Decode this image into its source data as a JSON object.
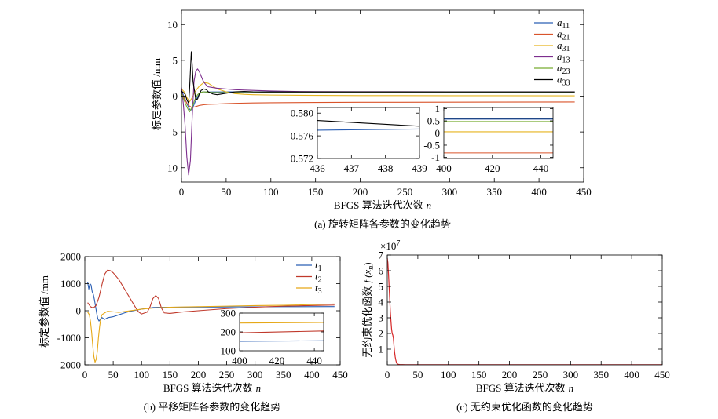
{
  "chart_data": [
    {
      "id": "a",
      "type": "line",
      "caption": "(a) 旋转矩阵各参数的变化趋势",
      "xlabel": "BFGS 算法迭代次数",
      "xlabel_var": "n",
      "ylabel": "标定参数值 /mm",
      "xlim": [
        0,
        450
      ],
      "ylim": [
        -12,
        12
      ],
      "xticks": [
        "0",
        "50",
        "100",
        "150",
        "200",
        "250",
        "300",
        "350",
        "400",
        "450"
      ],
      "yticks": [
        "10",
        "5",
        "0",
        "-5",
        "-10"
      ],
      "legend_position": "top-right",
      "series": [
        {
          "name": "a",
          "sub": "11",
          "color": "#2b5fb4",
          "x": [
            0,
            2,
            4,
            6,
            8,
            10,
            12,
            14,
            16,
            18,
            20,
            22,
            24,
            26,
            28,
            30,
            35,
            40,
            45,
            50,
            60,
            70,
            80,
            90,
            100,
            110,
            120,
            130,
            150,
            200,
            300,
            440
          ],
          "y": [
            0.8,
            0.2,
            -0.4,
            -1.0,
            -1.6,
            -2.0,
            -1.8,
            -1.2,
            -0.6,
            -0.1,
            0.3,
            0.5,
            0.6,
            0.58,
            0.55,
            0.57,
            0.58,
            0.58,
            0.59,
            0.6,
            0.6,
            0.59,
            0.59,
            0.58,
            0.58,
            0.58,
            0.579,
            0.578,
            0.577,
            0.577,
            0.577,
            0.577
          ]
        },
        {
          "name": "a",
          "sub": "21",
          "color": "#d9542b",
          "x": [
            0,
            3,
            6,
            9,
            12,
            15,
            20,
            25,
            30,
            40,
            50,
            60,
            80,
            100,
            150,
            200,
            300,
            440
          ],
          "y": [
            0.5,
            -0.3,
            -1.0,
            -1.4,
            -1.6,
            -1.5,
            -1.3,
            -1.2,
            -1.15,
            -1.1,
            -1.05,
            -1.0,
            -0.95,
            -0.92,
            -0.88,
            -0.86,
            -0.84,
            -0.82
          ]
        },
        {
          "name": "a",
          "sub": "31",
          "color": "#e6b31e",
          "x": [
            0,
            3,
            6,
            9,
            12,
            15,
            20,
            25,
            30,
            35,
            40,
            50,
            60,
            70,
            80,
            100,
            150,
            200,
            300,
            440
          ],
          "y": [
            1.0,
            0.6,
            -0.2,
            -0.8,
            -0.2,
            0.6,
            1.4,
            1.9,
            1.8,
            1.4,
            1.0,
            0.6,
            0.35,
            0.25,
            0.2,
            0.15,
            0.1,
            0.08,
            0.06,
            0.05
          ]
        },
        {
          "name": "a",
          "sub": "13",
          "color": "#7d2e8e",
          "x": [
            0,
            2,
            4,
            6,
            8,
            10,
            12,
            14,
            16,
            18,
            20,
            22,
            24,
            26,
            28,
            30,
            35,
            40,
            50,
            60,
            70,
            80,
            100,
            120,
            150,
            200,
            300,
            440
          ],
          "y": [
            1.2,
            -1.0,
            -4.0,
            -8.5,
            -11.0,
            -9.0,
            -3.0,
            2.0,
            3.5,
            3.8,
            3.4,
            2.8,
            2.2,
            1.8,
            1.5,
            1.3,
            1.2,
            1.1,
            1.0,
            0.9,
            0.85,
            0.8,
            0.72,
            0.66,
            0.62,
            0.61,
            0.6,
            0.6
          ]
        },
        {
          "name": "a",
          "sub": "23",
          "color": "#77ac30",
          "x": [
            0,
            3,
            6,
            9,
            12,
            15,
            18,
            21,
            25,
            30,
            35,
            40,
            50,
            60,
            80,
            100,
            150,
            200,
            300,
            440
          ],
          "y": [
            0.4,
            -0.6,
            -1.5,
            -2.2,
            -1.5,
            -0.5,
            0.2,
            0.5,
            0.6,
            0.55,
            0.5,
            0.5,
            0.48,
            0.47,
            0.47,
            0.47,
            0.47,
            0.47,
            0.47,
            0.47
          ]
        },
        {
          "name": "a",
          "sub": "33",
          "color": "#000000",
          "x": [
            0,
            2,
            4,
            6,
            8,
            9,
            10,
            11,
            12,
            13,
            14,
            15,
            16,
            18,
            20,
            22,
            25,
            28,
            30,
            35,
            40,
            50,
            60,
            70,
            80,
            90,
            100,
            110,
            120,
            130,
            150,
            200,
            300,
            440
          ],
          "y": [
            0.7,
            0.5,
            0.3,
            -0.5,
            -1.0,
            0.8,
            3.5,
            6.2,
            4.5,
            2.0,
            1.2,
            0.4,
            -0.5,
            -0.4,
            0.3,
            0.8,
            1.0,
            0.9,
            0.6,
            0.3,
            0.2,
            0.4,
            0.6,
            0.65,
            0.6,
            0.58,
            0.58,
            0.58,
            0.578,
            0.578,
            0.578,
            0.578,
            0.578,
            0.578
          ]
        }
      ],
      "insets": [
        {
          "xlim": [
            436,
            439
          ],
          "ylim": [
            0.572,
            0.581
          ],
          "xticks": [
            "436",
            "437",
            "438",
            "439"
          ],
          "yticks": [
            "0.580",
            "0.576",
            "0.572"
          ],
          "lines": [
            {
              "color": "#000000",
              "x": [
                436,
                439
              ],
              "y": [
                0.5787,
                0.5777
              ]
            },
            {
              "color": "#2b5fb4",
              "x": [
                436,
                439
              ],
              "y": [
                0.577,
                0.5772
              ]
            }
          ]
        },
        {
          "xlim": [
            400,
            445
          ],
          "ylim": [
            -1.05,
            1.05
          ],
          "xticks": [
            "400",
            "420",
            "440"
          ],
          "yticks": [
            "1",
            "0.5",
            "0",
            "-0.5",
            "-1"
          ],
          "lines": [
            {
              "color": "#7d2e8e",
              "x": [
                400,
                445
              ],
              "y": [
                0.6,
                0.6
              ]
            },
            {
              "color": "#000000",
              "x": [
                400,
                445
              ],
              "y": [
                0.58,
                0.58
              ]
            },
            {
              "color": "#2b5fb4",
              "x": [
                400,
                445
              ],
              "y": [
                0.57,
                0.57
              ]
            },
            {
              "color": "#77ac30",
              "x": [
                400,
                445
              ],
              "y": [
                0.47,
                0.47
              ]
            },
            {
              "color": "#e6b31e",
              "x": [
                400,
                445
              ],
              "y": [
                0.05,
                0.05
              ]
            },
            {
              "color": "#d9542b",
              "x": [
                400,
                445
              ],
              "y": [
                -0.82,
                -0.82
              ]
            }
          ]
        }
      ]
    },
    {
      "id": "b",
      "type": "line",
      "caption": "(b) 平移矩阵各参数的变化趋势",
      "xlabel": "BFGS 算法迭代次数",
      "xlabel_var": "n",
      "ylabel": "标定参数值 /mm",
      "xlim": [
        0,
        450
      ],
      "ylim": [
        -2000,
        2000
      ],
      "xticks": [
        "0",
        "50",
        "100",
        "150",
        "200",
        "250",
        "300",
        "350",
        "400",
        "450"
      ],
      "yticks": [
        "2000",
        "1000",
        "0",
        "-1000",
        "-2000"
      ],
      "legend_position": "top-right",
      "series": [
        {
          "name": "t",
          "sub": "1",
          "color": "#2b5fb4",
          "x": [
            5,
            7,
            9,
            11,
            13,
            15,
            17,
            19,
            21,
            23,
            25,
            28,
            30,
            35,
            40,
            50,
            60,
            70,
            80,
            90,
            100,
            110,
            120,
            130,
            150,
            200,
            250,
            300,
            350,
            440
          ],
          "y": [
            1050,
            800,
            1000,
            950,
            700,
            600,
            400,
            150,
            -100,
            -300,
            -380,
            -300,
            -250,
            -320,
            -260,
            -220,
            -150,
            -80,
            -20,
            20,
            60,
            90,
            120,
            130,
            130,
            135,
            140,
            145,
            150,
            155
          ]
        },
        {
          "name": "t",
          "sub": "2",
          "color": "#c0392b",
          "x": [
            5,
            10,
            15,
            20,
            25,
            30,
            35,
            40,
            45,
            50,
            60,
            70,
            80,
            90,
            95,
            100,
            110,
            115,
            120,
            125,
            130,
            135,
            140,
            150,
            170,
            200,
            250,
            300,
            350,
            440
          ],
          "y": [
            300,
            150,
            100,
            200,
            500,
            950,
            1350,
            1500,
            1480,
            1400,
            1150,
            800,
            450,
            100,
            -50,
            -120,
            -50,
            150,
            450,
            560,
            450,
            100,
            -80,
            -100,
            -50,
            0,
            80,
            130,
            170,
            210
          ]
        },
        {
          "name": "t",
          "sub": "3",
          "color": "#e6a817",
          "x": [
            5,
            8,
            10,
            12,
            14,
            16,
            18,
            20,
            22,
            24,
            26,
            28,
            30,
            35,
            40,
            50,
            60,
            80,
            100,
            120,
            150,
            200,
            250,
            300,
            350,
            440
          ],
          "y": [
            -50,
            -150,
            -400,
            -800,
            -1300,
            -1700,
            -1900,
            -1800,
            -1500,
            -1000,
            -600,
            -300,
            -150,
            -80,
            -20,
            -40,
            -60,
            0,
            60,
            100,
            130,
            150,
            170,
            190,
            200,
            250
          ]
        }
      ],
      "insets": [
        {
          "xlim": [
            400,
            445
          ],
          "ylim": [
            100,
            300
          ],
          "xticks": [
            "400",
            "420",
            "440"
          ],
          "yticks": [
            "300",
            "200",
            "100"
          ],
          "lines": [
            {
              "color": "#e6a817",
              "x": [
                400,
                445
              ],
              "y": [
                247,
                250
              ]
            },
            {
              "color": "#c0392b",
              "x": [
                400,
                445
              ],
              "y": [
                195,
                205
              ]
            },
            {
              "color": "#2b5fb4",
              "x": [
                400,
                445
              ],
              "y": [
                150,
                153
              ]
            }
          ]
        }
      ]
    },
    {
      "id": "c",
      "type": "line",
      "caption": "(c) 无约束优化函数的变化趋势",
      "xlabel": "BFGS 算法迭代次数",
      "xlabel_var": "n",
      "ylabel": "无约束优化函数",
      "ylabel_var": "f (x",
      "ylabel_sub": "n",
      "ylabel_end": ")",
      "exponent": "×10",
      "exponent_power": "7",
      "xlim": [
        0,
        450
      ],
      "ylim": [
        0,
        7
      ],
      "xticks": [
        "0",
        "50",
        "100",
        "150",
        "200",
        "250",
        "300",
        "350",
        "400",
        "450"
      ],
      "yticks": [
        "7",
        "6",
        "5",
        "4",
        "3",
        "2",
        "1"
      ],
      "series": [
        {
          "name": "f",
          "color": "#d62728",
          "x": [
            0,
            1,
            2,
            3,
            4,
            5,
            6,
            7,
            8,
            9,
            10,
            11,
            12,
            13,
            14,
            15,
            16,
            18,
            20,
            30,
            50,
            100,
            450
          ],
          "y": [
            6.8,
            6.5,
            5.8,
            5.0,
            4.2,
            3.4,
            2.8,
            2.3,
            2.0,
            1.9,
            1.7,
            1.2,
            0.8,
            0.5,
            0.3,
            0.15,
            0.08,
            0.03,
            0.02,
            0.01,
            0.01,
            0.01,
            0.01
          ]
        }
      ]
    }
  ]
}
